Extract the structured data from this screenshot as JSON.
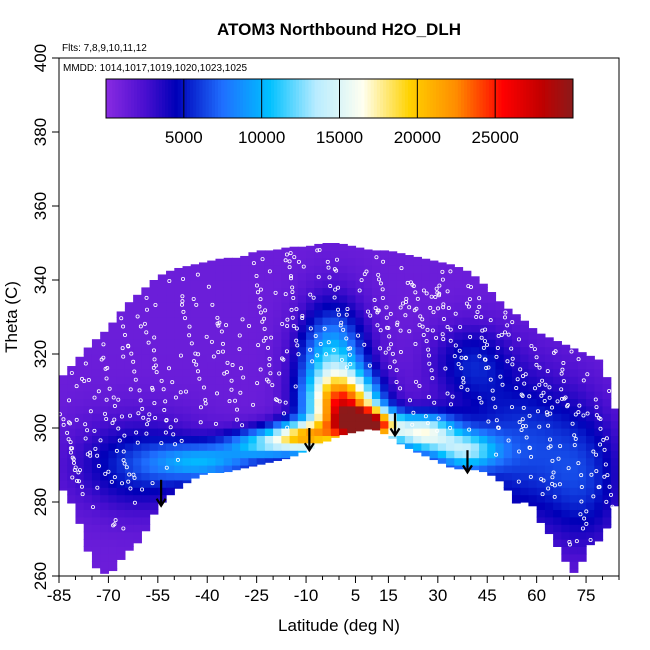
{
  "chart_data": {
    "type": "heatmap",
    "title": "ATOM3 Northbound H2O_DLH",
    "annotations": {
      "flights": "Flts: 7,8,9,10,11,12",
      "dates": "MMDD: 1014,1017,1019,1020,1023,1025"
    },
    "xlabel": "Latitude (deg N)",
    "ylabel": "Theta (C)",
    "xlim": [
      -85,
      85
    ],
    "ylim": [
      260,
      400
    ],
    "xticks": [
      -85,
      -70,
      -55,
      -40,
      -25,
      -10,
      5,
      15,
      30,
      45,
      60,
      75
    ],
    "xtick_labels": [
      "-85",
      "-70",
      "-55",
      "-40",
      "-25",
      "-10",
      "5",
      "15",
      "30",
      "45",
      "60",
      "75"
    ],
    "yticks": [
      260,
      280,
      300,
      320,
      340,
      360,
      380,
      400
    ],
    "ytick_labels": [
      "260",
      "280",
      "300",
      "320",
      "340",
      "360",
      "380",
      "400"
    ],
    "colorbar": {
      "range": [
        0,
        30000
      ],
      "ticks": [
        5000,
        10000,
        15000,
        20000,
        25000
      ],
      "tick_labels": [
        "5000",
        "10000",
        "15000",
        "20000",
        "25000"
      ],
      "placement": "top-inside",
      "stops": [
        {
          "v": 0,
          "c": "#8a2be2"
        },
        {
          "v": 2500,
          "c": "#4a0fd0"
        },
        {
          "v": 4500,
          "c": "#0000b8"
        },
        {
          "v": 7500,
          "c": "#1f6fff"
        },
        {
          "v": 10500,
          "c": "#00c0ff"
        },
        {
          "v": 13500,
          "c": "#b8ecff"
        },
        {
          "v": 16500,
          "c": "#fffff0"
        },
        {
          "v": 19500,
          "c": "#ffd200"
        },
        {
          "v": 22500,
          "c": "#ff8c00"
        },
        {
          "v": 25500,
          "c": "#ff0000"
        },
        {
          "v": 28000,
          "c": "#c00000"
        },
        {
          "v": 30000,
          "c": "#8b1a1a"
        }
      ]
    },
    "field": {
      "lat_step": 2.5,
      "theta_step": 2,
      "boundary": [
        {
          "lat": -85,
          "bottom": 285,
          "top": 313
        },
        {
          "lat": -80,
          "bottom": 278,
          "top": 318
        },
        {
          "lat": -75,
          "bottom": 263,
          "top": 323
        },
        {
          "lat": -70,
          "bottom": 260,
          "top": 327
        },
        {
          "lat": -65,
          "bottom": 266,
          "top": 333
        },
        {
          "lat": -60,
          "bottom": 270,
          "top": 337
        },
        {
          "lat": -55,
          "bottom": 279,
          "top": 341
        },
        {
          "lat": -50,
          "bottom": 283,
          "top": 343
        },
        {
          "lat": -45,
          "bottom": 286,
          "top": 344
        },
        {
          "lat": -40,
          "bottom": 288,
          "top": 345
        },
        {
          "lat": -35,
          "bottom": 288,
          "top": 346
        },
        {
          "lat": -30,
          "bottom": 289,
          "top": 346
        },
        {
          "lat": -25,
          "bottom": 290,
          "top": 348
        },
        {
          "lat": -20,
          "bottom": 291,
          "top": 348
        },
        {
          "lat": -15,
          "bottom": 292,
          "top": 349
        },
        {
          "lat": -10,
          "bottom": 294,
          "top": 349
        },
        {
          "lat": -5,
          "bottom": 296,
          "top": 350
        },
        {
          "lat": 0,
          "bottom": 298,
          "top": 350
        },
        {
          "lat": 5,
          "bottom": 299,
          "top": 349
        },
        {
          "lat": 10,
          "bottom": 300,
          "top": 348
        },
        {
          "lat": 15,
          "bottom": 298,
          "top": 348
        },
        {
          "lat": 20,
          "bottom": 295,
          "top": 347
        },
        {
          "lat": 25,
          "bottom": 293,
          "top": 346
        },
        {
          "lat": 30,
          "bottom": 291,
          "top": 345
        },
        {
          "lat": 35,
          "bottom": 289,
          "top": 344
        },
        {
          "lat": 40,
          "bottom": 289,
          "top": 342
        },
        {
          "lat": 45,
          "bottom": 288,
          "top": 338
        },
        {
          "lat": 50,
          "bottom": 285,
          "top": 333
        },
        {
          "lat": 55,
          "bottom": 278,
          "top": 330
        },
        {
          "lat": 57.5,
          "bottom": 282,
          "top": 328
        },
        {
          "lat": 60,
          "bottom": 276,
          "top": 326
        },
        {
          "lat": 65,
          "bottom": 270,
          "top": 324
        },
        {
          "lat": 70,
          "bottom": 262,
          "top": 322
        },
        {
          "lat": 72.5,
          "bottom": 260,
          "top": 321
        },
        {
          "lat": 75,
          "bottom": 268,
          "top": 320
        },
        {
          "lat": 80,
          "bottom": 270,
          "top": 318
        },
        {
          "lat": 85,
          "bottom": 282,
          "top": 301
        }
      ],
      "background_value": 1200,
      "features": [
        {
          "lat": 8,
          "theta": 301,
          "value": 27500,
          "lat_width": 8,
          "theta_width": 4
        },
        {
          "lat": 2,
          "theta": 306,
          "value": 18000,
          "lat_width": 10,
          "theta_width": 8
        },
        {
          "lat": -2,
          "theta": 316,
          "value": 10500,
          "lat_width": 10,
          "theta_width": 16
        },
        {
          "lat": -10,
          "theta": 298,
          "value": 15000,
          "lat_width": 10,
          "theta_width": 4
        },
        {
          "lat": -22,
          "theta": 296,
          "value": 9000,
          "lat_width": 12,
          "theta_width": 4
        },
        {
          "lat": -40,
          "theta": 291,
          "value": 7000,
          "lat_width": 16,
          "theta_width": 5
        },
        {
          "lat": -60,
          "theta": 290,
          "value": 4500,
          "lat_width": 20,
          "theta_width": 12
        },
        {
          "lat": 25,
          "theta": 299,
          "value": 14000,
          "lat_width": 10,
          "theta_width": 5
        },
        {
          "lat": 38,
          "theta": 294,
          "value": 9500,
          "lat_width": 10,
          "theta_width": 5
        },
        {
          "lat": 55,
          "theta": 295,
          "value": 5000,
          "lat_width": 20,
          "theta_width": 20
        },
        {
          "lat": 75,
          "theta": 285,
          "value": 3500,
          "lat_width": 12,
          "theta_width": 18
        },
        {
          "lat": 40,
          "theta": 318,
          "value": 3500,
          "lat_width": 12,
          "theta_width": 10
        }
      ]
    },
    "arrows": [
      {
        "lat": -54,
        "theta_top": 286,
        "theta_tip": 279
      },
      {
        "lat": -9,
        "theta_top": 300,
        "theta_tip": 294
      },
      {
        "lat": 17,
        "theta_top": 304,
        "theta_tip": 298
      },
      {
        "lat": 39,
        "theta_top": 294,
        "theta_tip": 288
      }
    ],
    "samples": {
      "marker": "open-circle",
      "color": "#ffffff",
      "tracks": [
        {
          "lat0": -85,
          "lat1": -78,
          "theta0": 306,
          "theta1": 282
        },
        {
          "lat0": -72,
          "lat1": -64,
          "theta0": 322,
          "theta1": 286
        },
        {
          "lat0": -66,
          "lat1": -58,
          "theta0": 330,
          "theta1": 298
        },
        {
          "lat0": -58,
          "lat1": -50,
          "theta0": 326,
          "theta1": 296
        },
        {
          "lat0": -48,
          "lat1": -40,
          "theta0": 336,
          "theta1": 306
        },
        {
          "lat0": -38,
          "lat1": -30,
          "theta0": 333,
          "theta1": 300
        },
        {
          "lat0": -26,
          "lat1": -20,
          "theta0": 344,
          "theta1": 312
        },
        {
          "lat0": -16,
          "lat1": -12,
          "theta0": 347,
          "theta1": 320
        },
        {
          "lat0": -4,
          "lat1": 4,
          "theta0": 345,
          "theta1": 318
        },
        {
          "lat0": 12,
          "lat1": 18,
          "theta0": 342,
          "theta1": 310
        },
        {
          "lat0": 22,
          "lat1": 28,
          "theta0": 340,
          "theta1": 316
        },
        {
          "lat0": 30,
          "lat1": 38,
          "theta0": 338,
          "theta1": 312
        },
        {
          "lat0": 42,
          "lat1": 48,
          "theta0": 335,
          "theta1": 300
        },
        {
          "lat0": 50,
          "lat1": 58,
          "theta0": 330,
          "theta1": 295
        },
        {
          "lat0": 60,
          "lat1": 66,
          "theta0": 322,
          "theta1": 282
        },
        {
          "lat0": 68,
          "lat1": 76,
          "theta0": 316,
          "theta1": 270
        },
        {
          "lat0": 78,
          "lat1": 84,
          "theta0": 308,
          "theta1": 270
        }
      ],
      "scatter_count": 420
    }
  }
}
